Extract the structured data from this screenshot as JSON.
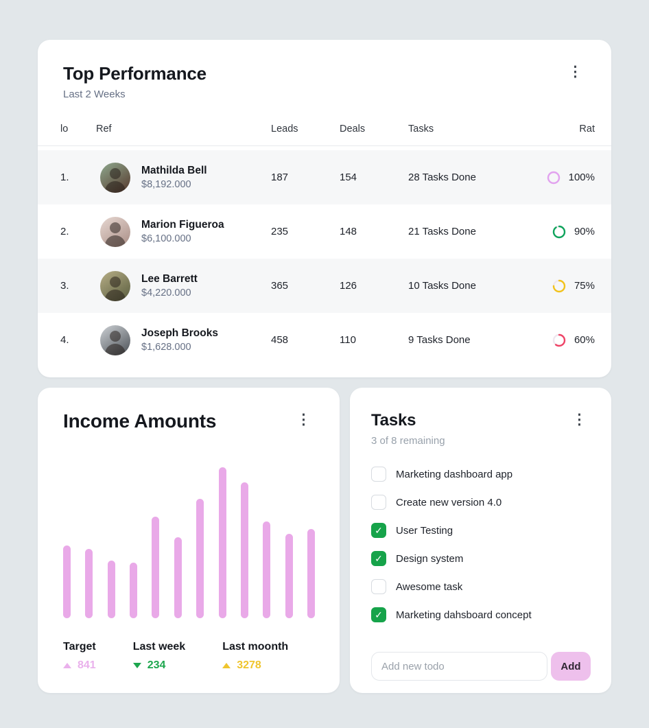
{
  "icons": {
    "kebab": "⋮",
    "check": "✓"
  },
  "top_performance": {
    "title": "Top Performance",
    "subtitle": "Last 2 Weeks",
    "columns": {
      "no": "lo",
      "ref": "Ref",
      "leads": "Leads",
      "deals": "Deals",
      "tasks": "Tasks",
      "rate": "Rat"
    },
    "rows": [
      {
        "no": "1.",
        "name": "Mathilda Bell",
        "amount": "$8,192.000",
        "leads": "187",
        "deals": "154",
        "tasks": "28 Tasks Done",
        "rate": "100%",
        "rate_value": 100,
        "ring_color": "#e2a3ef",
        "avatar_colors": [
          "#8fa98f",
          "#55372b"
        ]
      },
      {
        "no": "2.",
        "name": "Marion Figueroa",
        "amount": "$6,100.000",
        "leads": "235",
        "deals": "148",
        "tasks": "21 Tasks Done",
        "rate": "90%",
        "rate_value": 90,
        "ring_color": "#0fa45c",
        "avatar_colors": [
          "#e7d8d2",
          "#a98d85"
        ]
      },
      {
        "no": "3.",
        "name": "Lee Barrett",
        "amount": "$4,220.000",
        "leads": "365",
        "deals": "126",
        "tasks": "10 Tasks Done",
        "rate": "75%",
        "rate_value": 75,
        "ring_color": "#f2c31c",
        "avatar_colors": [
          "#b7ae87",
          "#585c3d"
        ]
      },
      {
        "no": "4.",
        "name": "Joseph Brooks",
        "amount": "$1,628.000",
        "leads": "458",
        "deals": "110",
        "tasks": "9 Tasks Done",
        "rate": "60%",
        "rate_value": 60,
        "ring_color": "#ef4467",
        "avatar_colors": [
          "#cdd1d5",
          "#4a4f55"
        ]
      }
    ]
  },
  "income": {
    "title": "Income Amounts",
    "chart_data": {
      "type": "bar",
      "title": "Income Amounts",
      "values": [
        105,
        100,
        83,
        80,
        147,
        117,
        172,
        218,
        196,
        140,
        122,
        129
      ],
      "bar_color": "#e9a9e8",
      "x_labels": [],
      "ylabel": "",
      "grid": false
    },
    "stats": [
      {
        "label": "Target",
        "value": "841",
        "direction": "up",
        "color": "#eab1ec"
      },
      {
        "label": "Last week",
        "value": "234",
        "direction": "down",
        "color": "#1da64e"
      },
      {
        "label": "Last moonth",
        "value": "3278",
        "direction": "up",
        "color": "#efc52e"
      }
    ]
  },
  "tasks": {
    "title": "Tasks",
    "subtitle": "3 of 8 remaining",
    "items": [
      {
        "label": "Marketing dashboard app",
        "checked": false
      },
      {
        "label": "Create new version 4.0",
        "checked": false
      },
      {
        "label": "User Testing",
        "checked": true
      },
      {
        "label": "Design system",
        "checked": true
      },
      {
        "label": "Awesome task",
        "checked": false
      },
      {
        "label": "Marketing dahsboard concept",
        "checked": true
      }
    ],
    "input_placeholder": "Add new todo",
    "add_button": "Add"
  }
}
